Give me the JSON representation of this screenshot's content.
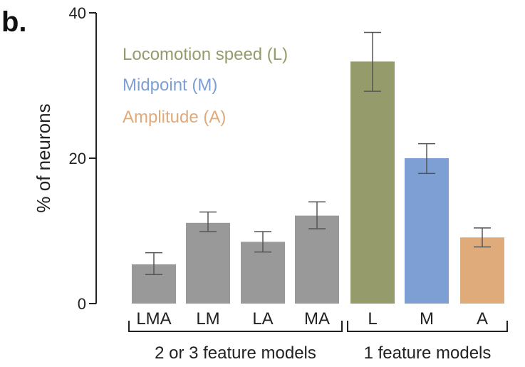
{
  "panel_label": "b.",
  "chart_data": {
    "type": "bar",
    "ylabel": "% of neurons",
    "ylim": [
      0,
      40
    ],
    "yticks": [
      "0",
      "20",
      "40"
    ],
    "categories": [
      "LMA",
      "LM",
      "LA",
      "MA",
      "L",
      "M",
      "A"
    ],
    "values": [
      5.4,
      11.1,
      8.5,
      12.1,
      33.3,
      20.0,
      9.1
    ],
    "error_low": [
      4.0,
      9.9,
      7.1,
      10.3,
      29.2,
      17.9,
      7.8
    ],
    "error_high": [
      7.0,
      12.6,
      9.9,
      14.0,
      37.3,
      22.0,
      10.4
    ],
    "bar_colors": [
      "#999999",
      "#999999",
      "#999999",
      "#999999",
      "#969b6c",
      "#7d9fd3",
      "#dfab7b"
    ],
    "legend": [
      {
        "label": "Locomotion speed (L)",
        "color": "#969b6c"
      },
      {
        "label": "Midpoint (M)",
        "color": "#7d9fd3"
      },
      {
        "label": "Amplitude (A)",
        "color": "#dfab7b"
      }
    ],
    "groups": [
      {
        "label": "2 or 3 feature models",
        "first": 0,
        "last": 3
      },
      {
        "label": "1 feature models",
        "first": 4,
        "last": 6
      }
    ]
  }
}
